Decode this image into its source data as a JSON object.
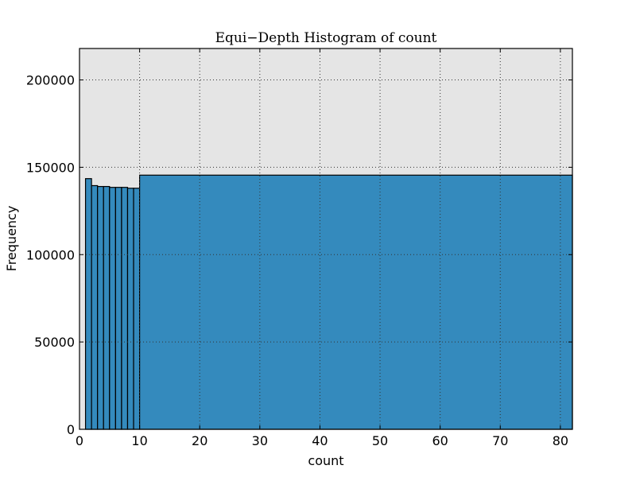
{
  "chart_data": {
    "type": "bar",
    "title": "Equi−Depth Histogram of count",
    "xlabel": "count",
    "ylabel": "Frequency",
    "xlim": [
      0,
      82
    ],
    "ylim": [
      0,
      218000
    ],
    "xticks": [
      0,
      10,
      20,
      30,
      40,
      50,
      60,
      70,
      80
    ],
    "yticks": [
      0,
      50000,
      100000,
      150000,
      200000
    ],
    "grid": true,
    "colors": {
      "bar_fill": "#348abd",
      "bar_edge": "#000000",
      "plot_background": "#e5e5e5",
      "grid": "#333333"
    },
    "bins": [
      {
        "left": 1,
        "right": 2,
        "value": 143500
      },
      {
        "left": 2,
        "right": 3,
        "value": 139500
      },
      {
        "left": 3,
        "right": 4,
        "value": 139000
      },
      {
        "left": 4,
        "right": 5,
        "value": 139000
      },
      {
        "left": 5,
        "right": 6,
        "value": 138500
      },
      {
        "left": 6,
        "right": 7,
        "value": 138500
      },
      {
        "left": 7,
        "right": 8,
        "value": 138500
      },
      {
        "left": 8,
        "right": 9,
        "value": 138000
      },
      {
        "left": 9,
        "right": 10,
        "value": 138000
      },
      {
        "left": 10,
        "right": 82,
        "value": 145500
      }
    ]
  }
}
